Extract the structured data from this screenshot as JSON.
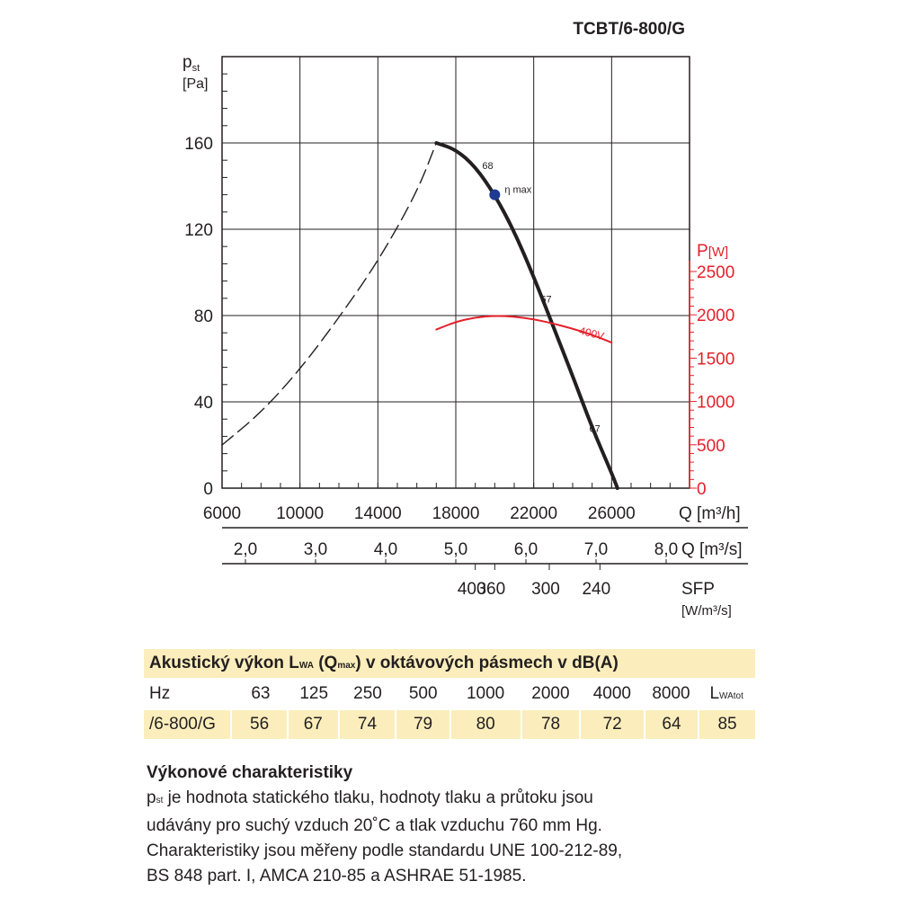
{
  "header": {
    "model": "TCBT/6-800/G"
  },
  "chart_data": {
    "type": "line",
    "title": "TCBT/6-800/G",
    "y_left": {
      "label_main": "p",
      "label_sub": "st",
      "unit": "[Pa]",
      "ticks": [
        0,
        40,
        80,
        120,
        160
      ],
      "range": [
        0,
        200
      ]
    },
    "y_right": {
      "label_main": "P",
      "unit": "[W]",
      "ticks": [
        0,
        500,
        1000,
        1500,
        2000,
        2500
      ],
      "color": "#e5202a"
    },
    "x_m3h": {
      "label": "Q [m³/h]",
      "ticks": [
        6000,
        10000,
        14000,
        18000,
        22000,
        26000
      ],
      "range": [
        6000,
        30000
      ]
    },
    "x_m3s": {
      "label": "Q [m³/s]",
      "ticks": [
        "2,0",
        "3,0",
        "4,0",
        "5,0",
        "6,0",
        "7,0",
        "8,0"
      ]
    },
    "x_sfp": {
      "label": "SFP",
      "unit": "[W/m³/s]",
      "ticks": [
        "400",
        "360",
        "300",
        "240"
      ]
    },
    "series": [
      {
        "name": "",
        "style": "solid",
        "axis": "left",
        "color": "#231f20",
        "x": [
          17000,
          18000,
          19000,
          20000,
          21000,
          22000,
          23000,
          24000,
          25000,
          26000,
          26300
        ],
        "y": [
          160,
          157,
          149,
          136,
          119,
          98,
          75,
          52,
          28,
          7,
          0
        ]
      },
      {
        "name": "",
        "style": "dashed",
        "axis": "left",
        "color": "#231f20",
        "x": [
          6000,
          8000,
          10000,
          12000,
          14000,
          16000,
          17000
        ],
        "y": [
          20,
          35,
          55,
          79,
          105,
          137,
          160
        ]
      },
      {
        "name": "400V",
        "style": "solid",
        "axis": "right",
        "color": "#e5202a",
        "x": [
          17000,
          18000,
          19000,
          20000,
          21000,
          22000,
          23000,
          24000,
          25000,
          26000
        ],
        "y": [
          1830,
          1920,
          1970,
          1990,
          1980,
          1950,
          1900,
          1840,
          1770,
          1680
        ]
      }
    ],
    "annotations": [
      {
        "text": "68",
        "x": 20000,
        "y": 148
      },
      {
        "text": "η max",
        "x": 20000,
        "y": 136,
        "marker": "circle",
        "marker_color": "#1f3a93"
      },
      {
        "text": "67",
        "x": 23000,
        "y": 86
      },
      {
        "text": "67",
        "x": 25500,
        "y": 26
      },
      {
        "text": "400V",
        "x": 24300,
        "y": 1780,
        "axis": "right"
      }
    ]
  },
  "acoustic": {
    "title_a": "Akustický výkon L",
    "title_sub1": "WA",
    "title_b": " (Q",
    "title_sub2": "max",
    "title_c": ") v oktávových pásmech v dB(A)",
    "header_row": {
      "label": "Hz",
      "values": [
        "63",
        "125",
        "250",
        "500",
        "1000",
        "2000",
        "4000",
        "8000"
      ],
      "total_main": "L",
      "total_sub": "WAtot"
    },
    "data_row": {
      "label": "/6-800/G",
      "values": [
        "56",
        "67",
        "74",
        "79",
        "80",
        "78",
        "72",
        "64"
      ],
      "total": "85"
    }
  },
  "performance": {
    "heading": "Výkonové charakteristiky",
    "line1_main": "p",
    "line1_sub": "st",
    "line1_rest": " je hodnota statického tlaku, hodnoty tlaku a průtoku jsou",
    "line2": "udávány pro suchý vzduch 20˚C a tlak vzduchu 760 mm Hg.",
    "line3": "Charakteristiky jsou měřeny podle standardu UNE 100-212-89,",
    "line4": "BS 848 part. I, AMCA 210-85 a ASHRAE 51-1985."
  }
}
